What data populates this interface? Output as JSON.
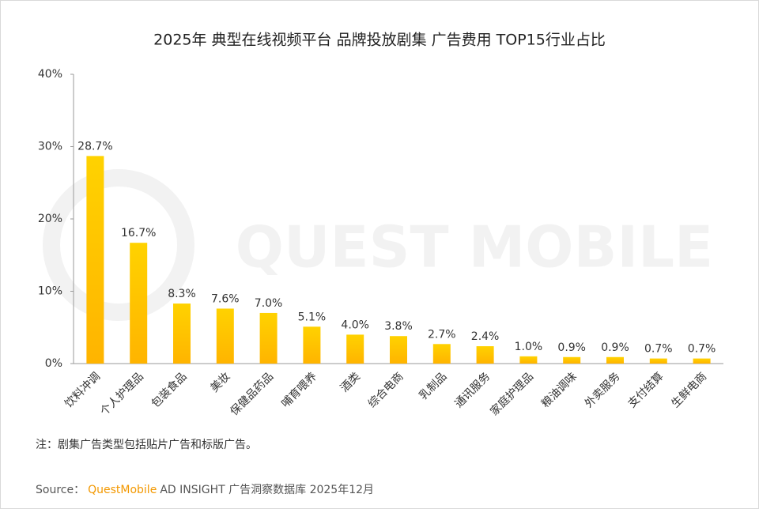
{
  "chart_data": {
    "type": "bar",
    "title": "2025年 典型在线视频平台 品牌投放剧集 广告费用  TOP15行业占比",
    "categories": [
      "饮料冲调",
      "个人护理品",
      "包装食品",
      "美妆",
      "保健品药品",
      "哺育喂养",
      "酒类",
      "综合电商",
      "乳制品",
      "通讯服务",
      "家庭护理品",
      "粮油调味",
      "外卖服务",
      "支付结算",
      "生鲜电商"
    ],
    "values": [
      28.7,
      16.7,
      8.3,
      7.6,
      7.0,
      5.1,
      4.0,
      3.8,
      2.7,
      2.4,
      1.0,
      0.9,
      0.9,
      0.7,
      0.7
    ],
    "value_labels": [
      "28.7%",
      "16.7%",
      "8.3%",
      "7.6%",
      "7.0%",
      "5.1%",
      "4.0%",
      "3.8%",
      "2.7%",
      "2.4%",
      "1.0%",
      "0.9%",
      "0.9%",
      "0.7%",
      "0.7%"
    ],
    "color": "#ffc400",
    "ylim": [
      0,
      40
    ],
    "yticks": [
      {
        "value": 0,
        "label": "0%"
      },
      {
        "value": 10,
        "label": "10%"
      },
      {
        "value": 20,
        "label": "20%"
      },
      {
        "value": 30,
        "label": "30%"
      },
      {
        "value": 40,
        "label": "40%"
      }
    ],
    "grid": false
  },
  "note": "注：剧集广告类型包括贴片广告和标版广告。",
  "watermark": "QUEST MOBILE",
  "source": {
    "prefix": "Source：",
    "brand": "QuestMobile",
    "rest": "AD INSIGHT 广告洞察数据库 2025年12月"
  }
}
